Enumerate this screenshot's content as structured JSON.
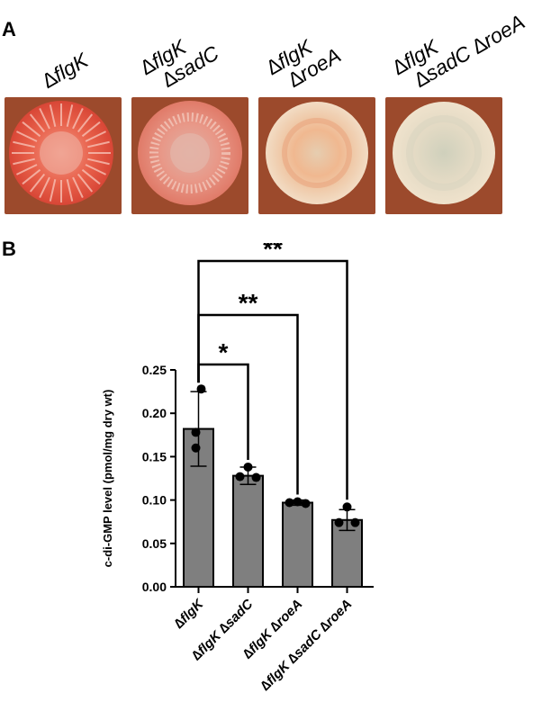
{
  "panels": {
    "a_letter": "A",
    "b_letter": "B"
  },
  "plates": [
    {
      "line1": "∆flgK",
      "line2": "",
      "colony_color": "#e8604a"
    },
    {
      "line1": "∆flgK",
      "line2": "∆sadC",
      "colony_color": "#e89888"
    },
    {
      "line1": "∆flgK",
      "line2": "∆roeA",
      "colony_color": "#efc9a8"
    },
    {
      "line1": "∆flgK",
      "line2": "∆sadC ∆roeA",
      "colony_color": "#e9dcc3"
    }
  ],
  "colors": {
    "agar_background": "#9c4a2c",
    "bar_fill": "#7f7f7f",
    "axis": "#000000"
  },
  "chart_data": {
    "type": "bar",
    "categories": [
      "∆flgK",
      "∆flgK ∆sadC",
      "∆flgK ∆roeA",
      "∆flgK ∆sadC ∆roeA"
    ],
    "values": [
      0.182,
      0.128,
      0.097,
      0.077
    ],
    "error": [
      0.043,
      0.01,
      0.003,
      0.012
    ],
    "points": [
      [
        0.228,
        0.178,
        0.16
      ],
      [
        0.138,
        0.127,
        0.126
      ],
      [
        0.098,
        0.097,
        0.096
      ],
      [
        0.092,
        0.074,
        0.074
      ]
    ],
    "ylabel": "c-di-GMP level (pmol/mg dry wt)",
    "xlabel": "",
    "title": "",
    "ylim": [
      0,
      0.25
    ],
    "yticks": [
      0.0,
      0.05,
      0.1,
      0.15,
      0.2,
      0.25
    ],
    "ytick_labels": [
      "0.00",
      "0.05",
      "0.10",
      "0.15",
      "0.20",
      "0.25"
    ],
    "significance": [
      {
        "from": 0,
        "to": 1,
        "label": "*"
      },
      {
        "from": 0,
        "to": 2,
        "label": "**"
      },
      {
        "from": 0,
        "to": 3,
        "label": "**"
      }
    ],
    "grid": false
  }
}
